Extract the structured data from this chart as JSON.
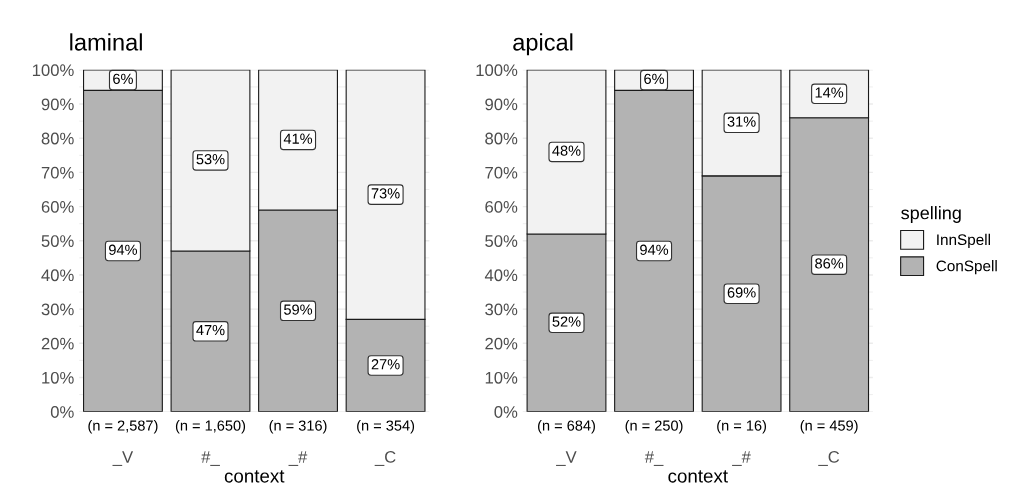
{
  "chart_data": [
    {
      "type": "bar",
      "title": "laminal",
      "xlabel": "context",
      "categories": [
        "_V",
        "#_",
        "_#",
        "_C"
      ],
      "stacked": true,
      "grid": "y",
      "ylim": [
        0,
        100
      ],
      "yticks": [
        {
          "value": 0,
          "label": "0%"
        },
        {
          "value": 10,
          "label": "10%"
        },
        {
          "value": 20,
          "label": "20%"
        },
        {
          "value": 30,
          "label": "30%"
        },
        {
          "value": 40,
          "label": "40%"
        },
        {
          "value": 50,
          "label": "50%"
        },
        {
          "value": 60,
          "label": "60%"
        },
        {
          "value": 70,
          "label": "70%"
        },
        {
          "value": 80,
          "label": "80%"
        },
        {
          "value": 90,
          "label": "90%"
        },
        {
          "value": 100,
          "label": "100%"
        }
      ],
      "series": [
        {
          "color": "#b3b3b3",
          "values": [
            94,
            47,
            59,
            27
          ],
          "value_labels": [
            "94%",
            "47%",
            "59%",
            "27%"
          ]
        },
        {
          "color": "#f2f2f2",
          "values": [
            6,
            53,
            41,
            73
          ],
          "value_labels": [
            "6%",
            "53%",
            "41%",
            "73%"
          ]
        }
      ],
      "annotations": [
        "(n = 2,587)",
        "(n = 1,650)",
        "(n = 316)",
        "(n = 354)"
      ]
    },
    {
      "type": "bar",
      "title": "apical",
      "xlabel": "context",
      "categories": [
        "_V",
        "#_",
        "_#",
        "_C"
      ],
      "stacked": true,
      "grid": "y",
      "legend": "right",
      "legend_title": "spelling",
      "ylim": [
        0,
        100
      ],
      "yticks": [
        {
          "value": 0,
          "label": "0%"
        },
        {
          "value": 10,
          "label": "10%"
        },
        {
          "value": 20,
          "label": "20%"
        },
        {
          "value": 30,
          "label": "30%"
        },
        {
          "value": 40,
          "label": "40%"
        },
        {
          "value": 50,
          "label": "50%"
        },
        {
          "value": 60,
          "label": "60%"
        },
        {
          "value": 70,
          "label": "70%"
        },
        {
          "value": 80,
          "label": "80%"
        },
        {
          "value": 90,
          "label": "90%"
        },
        {
          "value": 100,
          "label": "100%"
        }
      ],
      "series": [
        {
          "name": "ConSpell",
          "color": "#b3b3b3",
          "values": [
            52,
            94,
            69,
            86
          ],
          "value_labels": [
            "52%",
            "94%",
            "69%",
            "86%"
          ]
        },
        {
          "name": "InnSpell",
          "color": "#f2f2f2",
          "values": [
            48,
            6,
            31,
            14
          ],
          "value_labels": [
            "48%",
            "6%",
            "31%",
            "14%"
          ]
        }
      ],
      "annotations": [
        "(n = 684)",
        "(n = 250)",
        "(n = 16)",
        "(n = 459)"
      ]
    }
  ]
}
